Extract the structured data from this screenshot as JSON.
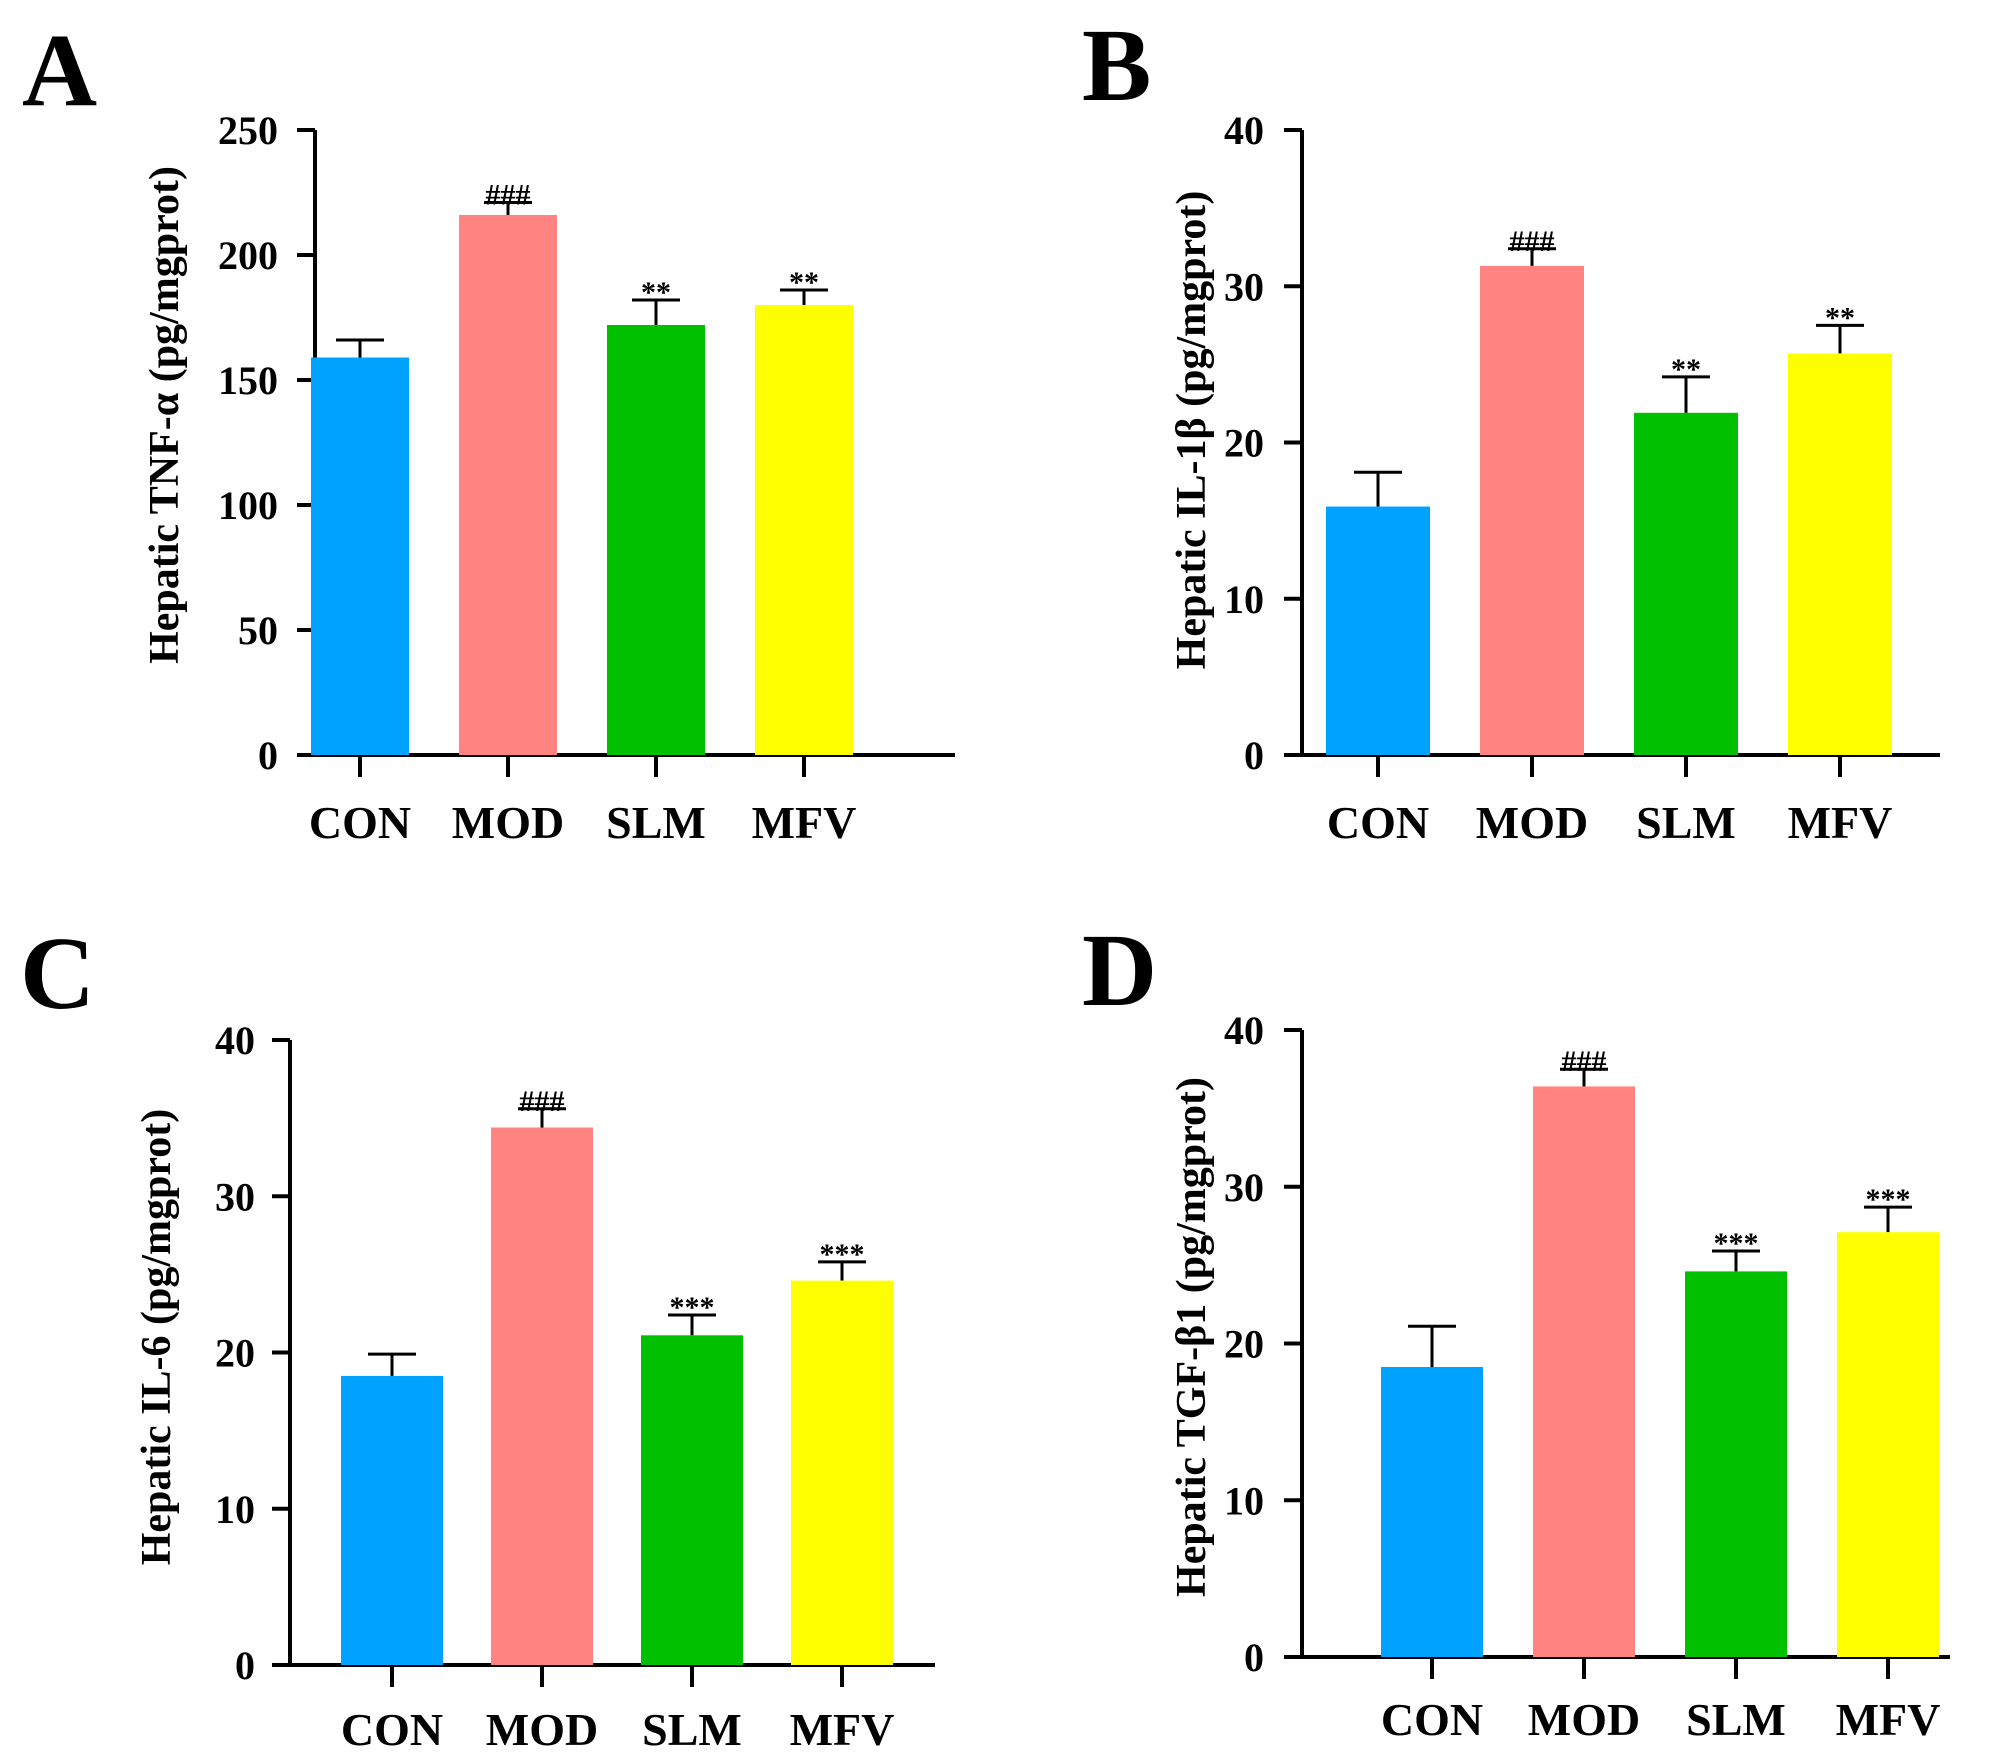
{
  "colors": {
    "CON": "#00a2ff",
    "MOD": "#ff8481",
    "SLM": "#00c000",
    "MFV": "#ffff00",
    "axis": "#000000"
  },
  "chart_data": [
    {
      "panel": "A",
      "type": "bar",
      "categories": [
        "CON",
        "MOD",
        "SLM",
        "MFV"
      ],
      "values": [
        159,
        216,
        172,
        180
      ],
      "error": [
        7,
        5,
        10,
        6
      ],
      "annotations": [
        "",
        "###",
        "**",
        "**"
      ],
      "ylabel": "Hepatic TNF-α (pg/mgprot)",
      "ylim": [
        0,
        250
      ],
      "yticks": [
        0,
        50,
        100,
        150,
        200,
        250
      ]
    },
    {
      "panel": "B",
      "type": "bar",
      "categories": [
        "CON",
        "MOD",
        "SLM",
        "MFV"
      ],
      "values": [
        15.9,
        31.3,
        21.9,
        25.7
      ],
      "error": [
        2.2,
        1.1,
        2.3,
        1.8
      ],
      "annotations": [
        "",
        "###",
        "**",
        "**"
      ],
      "ylabel": "Hepatic IL-1β (pg/mgprot)",
      "ylim": [
        0,
        40
      ],
      "yticks": [
        0,
        10,
        20,
        30,
        40
      ]
    },
    {
      "panel": "C",
      "type": "bar",
      "categories": [
        "CON",
        "MOD",
        "SLM",
        "MFV"
      ],
      "values": [
        18.5,
        34.4,
        21.1,
        24.6
      ],
      "error": [
        1.4,
        1.2,
        1.3,
        1.2
      ],
      "annotations": [
        "",
        "###",
        "***",
        "***"
      ],
      "ylabel": "Hepatic IL-6 (pg/mgprot)",
      "ylim": [
        0,
        40
      ],
      "yticks": [
        0,
        10,
        20,
        30,
        40
      ]
    },
    {
      "panel": "D",
      "type": "bar",
      "categories": [
        "CON",
        "MOD",
        "SLM",
        "MFV"
      ],
      "values": [
        18.5,
        36.4,
        24.6,
        27.1
      ],
      "error": [
        2.6,
        1.1,
        1.3,
        1.6
      ],
      "annotations": [
        "",
        "###",
        "***",
        "***"
      ],
      "ylabel": "Hepatic TGF-β1 (pg/mgprot)",
      "ylim": [
        0,
        40
      ],
      "yticks": [
        0,
        10,
        20,
        30,
        40
      ]
    }
  ]
}
